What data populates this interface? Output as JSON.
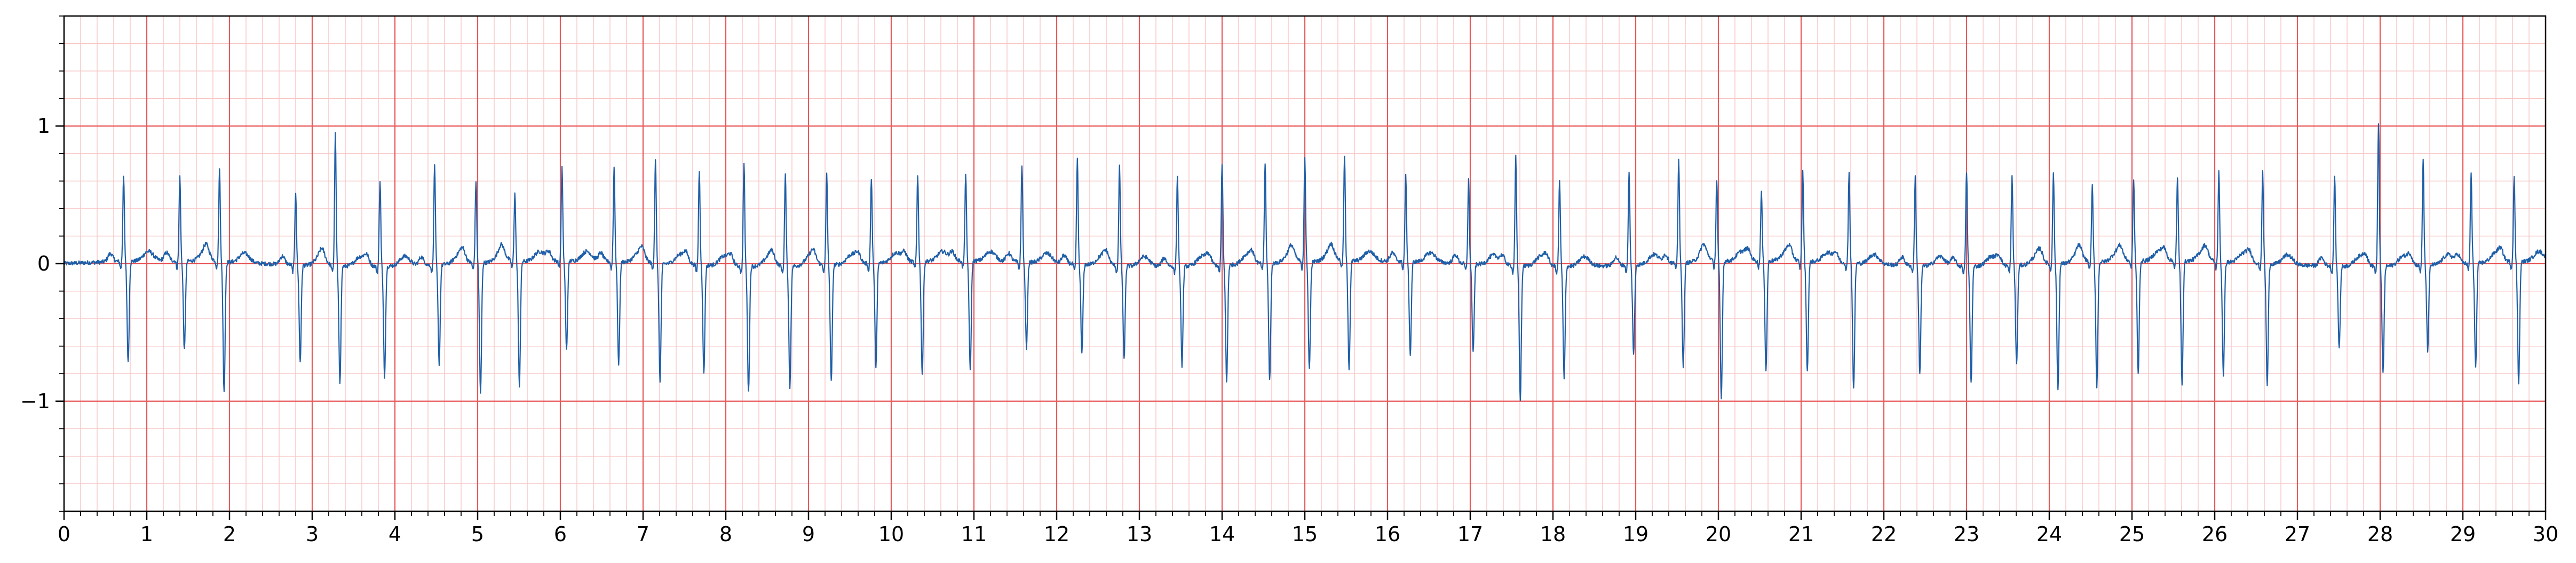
{
  "chart_data": {
    "type": "line",
    "title": "",
    "xlabel": "",
    "ylabel": "",
    "xlim": [
      0,
      30
    ],
    "ylim": [
      -1.8,
      1.8
    ],
    "x_ticks": [
      0,
      1,
      2,
      3,
      4,
      5,
      6,
      7,
      8,
      9,
      10,
      11,
      12,
      13,
      14,
      15,
      16,
      17,
      18,
      19,
      20,
      21,
      22,
      23,
      24,
      25,
      26,
      27,
      28,
      29,
      30
    ],
    "y_ticks": [
      1,
      0,
      -1
    ],
    "y_tick_labels": [
      "1",
      "0",
      "−1"
    ],
    "grid": {
      "major_x_step": 1,
      "minor_x_step": 0.2,
      "major_y_step": 1,
      "minor_y_step": 0.2,
      "major_color": "#e8585a",
      "minor_color": "#f8c4c4",
      "background_color": "#ffffff"
    },
    "line_color": "#1f5fa8",
    "beats": [
      [
        0.72,
        0.63,
        -0.74
      ],
      [
        1.4,
        0.61,
        -0.65
      ],
      [
        1.88,
        0.67,
        -0.95
      ],
      [
        2.8,
        0.53,
        -0.7
      ],
      [
        3.28,
        0.96,
        -0.85
      ],
      [
        3.82,
        0.63,
        -0.8
      ],
      [
        4.48,
        0.73,
        -0.72
      ],
      [
        4.98,
        0.6,
        -0.95
      ],
      [
        5.45,
        0.5,
        -0.9
      ],
      [
        6.02,
        0.68,
        -0.65
      ],
      [
        6.65,
        0.69,
        -0.75
      ],
      [
        7.15,
        0.76,
        -0.85
      ],
      [
        7.68,
        0.69,
        -0.78
      ],
      [
        8.22,
        0.75,
        -0.92
      ],
      [
        8.72,
        0.66,
        -0.88
      ],
      [
        9.22,
        0.67,
        -0.85
      ],
      [
        9.76,
        0.62,
        -0.75
      ],
      [
        10.32,
        0.63,
        -0.82
      ],
      [
        10.9,
        0.63,
        -0.8
      ],
      [
        11.58,
        0.71,
        -0.62
      ],
      [
        12.25,
        0.77,
        -0.65
      ],
      [
        12.76,
        0.72,
        -0.68
      ],
      [
        13.46,
        0.65,
        -0.72
      ],
      [
        14.0,
        0.73,
        -0.85
      ],
      [
        14.52,
        0.73,
        -0.85
      ],
      [
        15.0,
        0.76,
        -0.78
      ],
      [
        15.48,
        0.76,
        -0.78
      ],
      [
        16.22,
        0.62,
        -0.68
      ],
      [
        16.98,
        0.61,
        -0.65
      ],
      [
        17.55,
        0.79,
        -0.97
      ],
      [
        18.08,
        0.62,
        -0.82
      ],
      [
        18.92,
        0.67,
        -0.65
      ],
      [
        19.52,
        0.75,
        -0.75
      ],
      [
        19.98,
        0.59,
        -1.0
      ],
      [
        20.52,
        0.5,
        -0.8
      ],
      [
        21.02,
        0.65,
        -0.8
      ],
      [
        21.58,
        0.67,
        -0.92
      ],
      [
        22.38,
        0.64,
        -0.78
      ],
      [
        23.0,
        0.69,
        -0.85
      ],
      [
        23.55,
        0.66,
        -0.72
      ],
      [
        24.05,
        0.67,
        -0.92
      ],
      [
        24.52,
        0.55,
        -0.9
      ],
      [
        25.02,
        0.59,
        -0.82
      ],
      [
        25.55,
        0.6,
        -0.9
      ],
      [
        26.05,
        0.65,
        -0.82
      ],
      [
        26.58,
        0.66,
        -0.88
      ],
      [
        27.45,
        0.66,
        -0.6
      ],
      [
        27.98,
        1.04,
        -0.78
      ],
      [
        28.52,
        0.76,
        -0.62
      ],
      [
        29.1,
        0.65,
        -0.76
      ],
      [
        29.62,
        0.62,
        -0.88
      ]
    ]
  }
}
